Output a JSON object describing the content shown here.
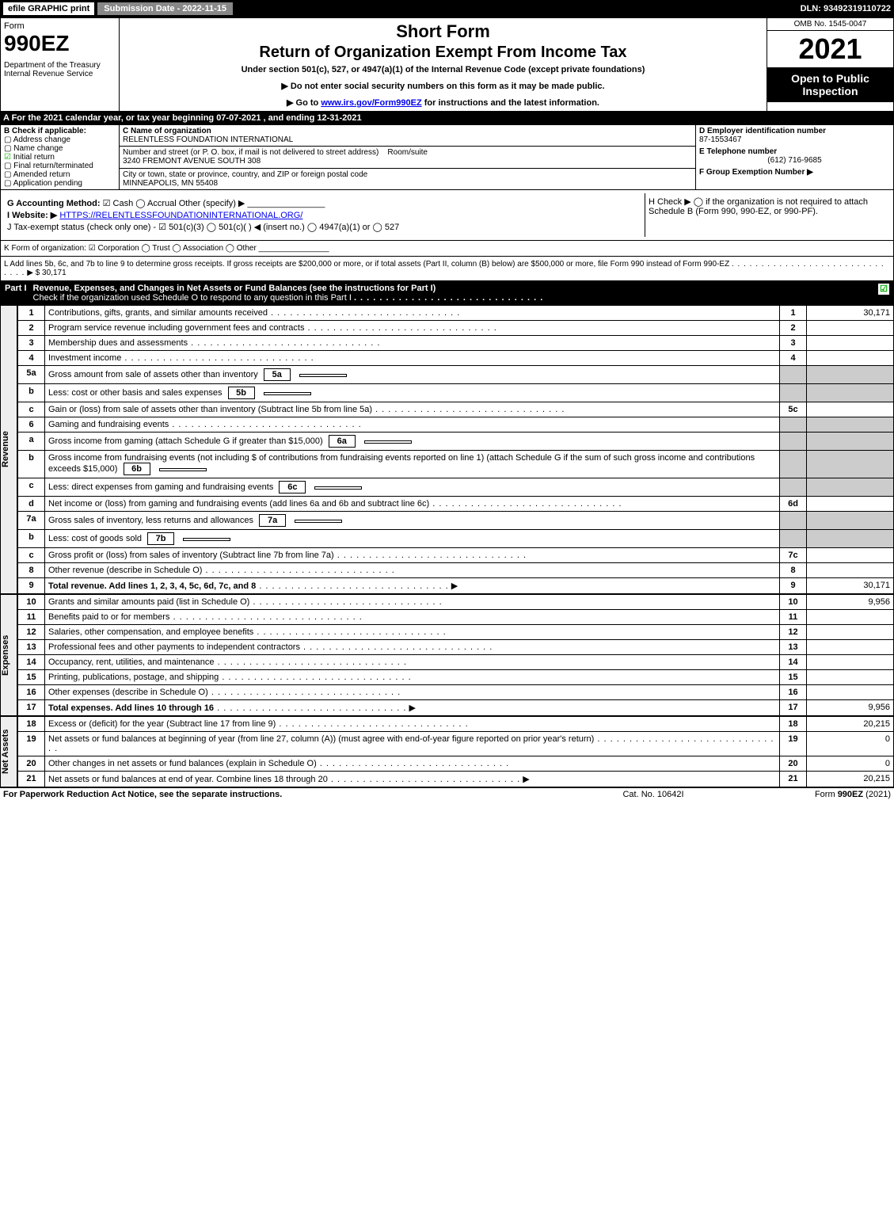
{
  "topbar": {
    "efile": "efile GRAPHIC print",
    "submission": "Submission Date - 2022-11-15",
    "dln": "DLN: 93492319110722"
  },
  "header": {
    "form_word": "Form",
    "form_number": "990EZ",
    "dept": "Department of the Treasury\nInternal Revenue Service",
    "short": "Short Form",
    "title": "Return of Organization Exempt From Income Tax",
    "under": "Under section 501(c), 527, or 4947(a)(1) of the Internal Revenue Code (except private foundations)",
    "note1": "▶ Do not enter social security numbers on this form as it may be made public.",
    "note2_pre": "▶ Go to ",
    "note2_link": "www.irs.gov/Form990EZ",
    "note2_post": " for instructions and the latest information.",
    "omb": "OMB No. 1545-0047",
    "year": "2021",
    "open": "Open to Public Inspection"
  },
  "line_a": "A  For the 2021 calendar year, or tax year beginning 07-07-2021 , and ending 12-31-2021",
  "box_b": {
    "title": "B  Check if applicable:",
    "items": [
      "Address change",
      "Name change",
      "Initial return",
      "Final return/terminated",
      "Amended return",
      "Application pending"
    ],
    "checked_index": 2
  },
  "box_c": {
    "label": "C Name of organization",
    "name": "RELENTLESS FOUNDATION INTERNATIONAL",
    "street_label": "Number and street (or P. O. box, if mail is not delivered to street address)",
    "room_label": "Room/suite",
    "street": "3240 FREMONT AVENUE SOUTH 308",
    "city_label": "City or town, state or province, country, and ZIP or foreign postal code",
    "city": "MINNEAPOLIS, MN  55408"
  },
  "box_d": {
    "label": "D Employer identification number",
    "value": "87-1553467"
  },
  "box_e": {
    "label": "E Telephone number",
    "value": "(612) 716-9685"
  },
  "box_f": {
    "label": "F Group Exemption Number  ▶",
    "value": ""
  },
  "line_g": {
    "label": "G Accounting Method:",
    "opts": "☑ Cash  ◯ Accrual  Other (specify) ▶",
    "blank": "________________"
  },
  "line_h": "H  Check ▶  ◯  if the organization is not required to attach Schedule B (Form 990, 990-EZ, or 990-PF).",
  "line_i": {
    "label": "I Website: ▶",
    "value": "HTTPS://RELENTLESSFOUNDATIONINTERNATIONAL.ORG/"
  },
  "line_j": "J Tax-exempt status (check only one) - ☑ 501(c)(3) ◯ 501(c)(  ) ◀ (insert no.) ◯ 4947(a)(1) or ◯ 527",
  "line_k": "K Form of organization:  ☑ Corporation  ◯ Trust  ◯ Association  ◯ Other  ________________",
  "line_l": {
    "text": "L Add lines 5b, 6c, and 7b to line 9 to determine gross receipts. If gross receipts are $200,000 or more, or if total assets (Part II, column (B) below) are $500,000 or more, file Form 990 instead of Form 990-EZ",
    "arrow": "▶ $",
    "amount": "30,171"
  },
  "part1": {
    "num": "Part I",
    "title": "Revenue, Expenses, and Changes in Net Assets or Fund Balances (see the instructions for Part I)",
    "check_note": "Check if the organization used Schedule O to respond to any question in this Part I",
    "checked": "☑"
  },
  "sections": {
    "revenue_label": "Revenue",
    "expenses_label": "Expenses",
    "netassets_label": "Net Assets"
  },
  "rows": [
    {
      "n": "1",
      "d": "Contributions, gifts, grants, and similar amounts received",
      "c": "1",
      "a": "30,171"
    },
    {
      "n": "2",
      "d": "Program service revenue including government fees and contracts",
      "c": "2",
      "a": ""
    },
    {
      "n": "3",
      "d": "Membership dues and assessments",
      "c": "3",
      "a": ""
    },
    {
      "n": "4",
      "d": "Investment income",
      "c": "4",
      "a": ""
    },
    {
      "n": "5a",
      "d": "Gross amount from sale of assets other than inventory",
      "sub": "5a",
      "suba": "",
      "shade": true
    },
    {
      "n": "b",
      "d": "Less: cost or other basis and sales expenses",
      "sub": "5b",
      "suba": "",
      "shade": true
    },
    {
      "n": "c",
      "d": "Gain or (loss) from sale of assets other than inventory (Subtract line 5b from line 5a)",
      "c": "5c",
      "a": ""
    },
    {
      "n": "6",
      "d": "Gaming and fundraising events",
      "shade": true,
      "noamt": true
    },
    {
      "n": "a",
      "d": "Gross income from gaming (attach Schedule G if greater than $15,000)",
      "sub": "6a",
      "suba": "",
      "shade": true
    },
    {
      "n": "b",
      "d": "Gross income from fundraising events (not including $                    of contributions from fundraising events reported on line 1) (attach Schedule G if the sum of such gross income and contributions exceeds $15,000)",
      "sub": "6b",
      "suba": "",
      "shade": true
    },
    {
      "n": "c",
      "d": "Less: direct expenses from gaming and fundraising events",
      "sub": "6c",
      "suba": "",
      "shade": true
    },
    {
      "n": "d",
      "d": "Net income or (loss) from gaming and fundraising events (add lines 6a and 6b and subtract line 6c)",
      "c": "6d",
      "a": ""
    },
    {
      "n": "7a",
      "d": "Gross sales of inventory, less returns and allowances",
      "sub": "7a",
      "suba": "",
      "shade": true
    },
    {
      "n": "b",
      "d": "Less: cost of goods sold",
      "sub": "7b",
      "suba": "",
      "shade": true
    },
    {
      "n": "c",
      "d": "Gross profit or (loss) from sales of inventory (Subtract line 7b from line 7a)",
      "c": "7c",
      "a": ""
    },
    {
      "n": "8",
      "d": "Other revenue (describe in Schedule O)",
      "c": "8",
      "a": ""
    },
    {
      "n": "9",
      "d": "Total revenue. Add lines 1, 2, 3, 4, 5c, 6d, 7c, and 8",
      "c": "9",
      "a": "30,171",
      "bold": true,
      "arrow": true
    }
  ],
  "exp_rows": [
    {
      "n": "10",
      "d": "Grants and similar amounts paid (list in Schedule O)",
      "c": "10",
      "a": "9,956"
    },
    {
      "n": "11",
      "d": "Benefits paid to or for members",
      "c": "11",
      "a": ""
    },
    {
      "n": "12",
      "d": "Salaries, other compensation, and employee benefits",
      "c": "12",
      "a": ""
    },
    {
      "n": "13",
      "d": "Professional fees and other payments to independent contractors",
      "c": "13",
      "a": ""
    },
    {
      "n": "14",
      "d": "Occupancy, rent, utilities, and maintenance",
      "c": "14",
      "a": ""
    },
    {
      "n": "15",
      "d": "Printing, publications, postage, and shipping",
      "c": "15",
      "a": ""
    },
    {
      "n": "16",
      "d": "Other expenses (describe in Schedule O)",
      "c": "16",
      "a": ""
    },
    {
      "n": "17",
      "d": "Total expenses. Add lines 10 through 16",
      "c": "17",
      "a": "9,956",
      "bold": true,
      "arrow": true
    }
  ],
  "na_rows": [
    {
      "n": "18",
      "d": "Excess or (deficit) for the year (Subtract line 17 from line 9)",
      "c": "18",
      "a": "20,215"
    },
    {
      "n": "19",
      "d": "Net assets or fund balances at beginning of year (from line 27, column (A)) (must agree with end-of-year figure reported on prior year's return)",
      "c": "19",
      "a": "0"
    },
    {
      "n": "20",
      "d": "Other changes in net assets or fund balances (explain in Schedule O)",
      "c": "20",
      "a": "0"
    },
    {
      "n": "21",
      "d": "Net assets or fund balances at end of year. Combine lines 18 through 20",
      "c": "21",
      "a": "20,215",
      "arrow": true
    }
  ],
  "footer": {
    "left": "For Paperwork Reduction Act Notice, see the separate instructions.",
    "mid": "Cat. No. 10642I",
    "right": "Form 990-EZ (2021)"
  }
}
